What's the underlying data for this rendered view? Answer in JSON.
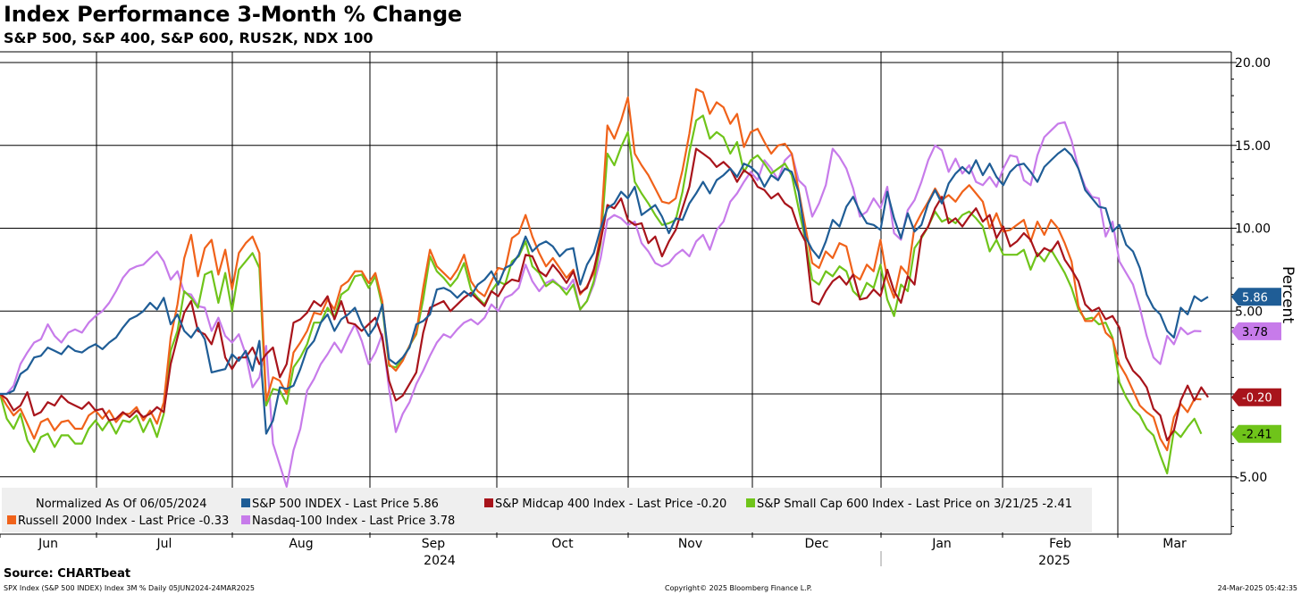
{
  "header": {
    "title": "Index Performance 3-Month % Change",
    "subtitle": "S&P 500, S&P 400, S&P 600, RUS2K, NDX 100"
  },
  "footer": {
    "source": "Source: CHARTbeat",
    "left_note": "SPX Index (S&P 500 INDEX) Index 3M %  Daily 05JUN2024-24MAR2025",
    "center_note": "Copyright© 2025 Bloomberg Finance L.P.",
    "right_note": "24-Mar-2025 05:42:35"
  },
  "colors": {
    "sp500": "#1f5d96",
    "midcap": "#a8141b",
    "smallcap": "#6fc41a",
    "russell": "#f0621a",
    "nasdaq": "#c77bea",
    "grid": "#000000"
  },
  "chart_data": {
    "type": "line",
    "ylabel": "Percent",
    "ylim": [
      -8.5,
      21
    ],
    "yticks": [
      -5,
      0,
      5,
      10,
      15,
      20
    ],
    "ytick_labels": [
      "-5.00",
      "",
      "5.00",
      "10.00",
      "15.00",
      "20.00"
    ],
    "month_labels": [
      "Jun",
      "Jul",
      "Aug",
      "Sep",
      "Oct",
      "Nov",
      "Dec",
      "Jan",
      "Feb",
      "Mar"
    ],
    "year_labels": [
      "2024",
      "2025"
    ],
    "legend_header": "Normalized As Of 06/05/2024",
    "legend_entries": [
      "S&P 500 INDEX - Last Price      5.86",
      "S&P Midcap 400 Index - Last Price -0.20",
      "S&P Small Cap 600 Index - Last Price on 3/21/25 -2.41",
      "Russell 2000 Index - Last Price -0.33",
      "Nasdaq-100 Index - Last Price 3.78"
    ],
    "series": [
      {
        "name": "S&P 500 INDEX",
        "last_label": "5.86",
        "values": [
          0,
          0,
          0.2,
          1.2,
          1.5,
          2.2,
          2.3,
          2.8,
          2.6,
          2.4,
          2.9,
          2.6,
          2.5,
          2.8,
          3,
          2.7,
          3.1,
          3.4,
          4,
          4.5,
          4.7,
          5,
          5.5,
          5.1,
          5.8,
          4.2,
          4.8,
          3.8,
          3.4,
          4,
          3.3,
          1.3,
          1.4,
          1.5,
          2.4,
          2,
          2.6,
          1.4,
          3.2,
          -2.4,
          -1.6,
          0.4,
          0.3,
          0.5,
          1.5,
          2.7,
          3.2,
          4.3,
          4.8,
          3.8,
          4.5,
          4.8,
          5.2,
          4.2,
          3.5,
          4.1,
          5.4,
          2.1,
          1.8,
          2.2,
          2.8,
          4.2,
          4.4,
          4.8,
          6.3,
          6.4,
          6.2,
          5.8,
          6.2,
          5.9,
          6.6,
          6.9,
          7.4,
          6.6,
          7.6,
          7.8,
          8.4,
          9.5,
          8.6,
          9,
          9.2,
          8.9,
          8.3,
          8.7,
          8.8,
          6.6,
          7.8,
          8.5,
          10,
          11.2,
          11.5,
          12.2,
          11.8,
          12.5,
          10.8,
          11.1,
          11.4,
          10.7,
          9.7,
          10.6,
          10.5,
          11.5,
          12.1,
          12.8,
          12.1,
          12.9,
          13.2,
          13.6,
          13.1,
          13.9,
          13.7,
          13.3,
          12.5,
          13.2,
          12.9,
          13.6,
          13.4,
          12.2,
          9.5,
          8.7,
          8.2,
          9.2,
          10.5,
          10.1,
          11.3,
          11.9,
          11,
          10.3,
          10.2,
          9.9,
          12.2,
          10.6,
          9.4,
          10.9,
          9.8,
          10.2,
          11.5,
          12.3,
          11.5,
          12.7,
          13.3,
          13.7,
          13.3,
          14.1,
          13.2,
          13.9,
          13.1,
          12.6,
          13.4,
          13.8,
          13.9,
          13.4,
          12.8,
          13.7,
          14.1,
          14.5,
          14.8,
          14.4,
          13.6,
          12.3,
          11.8,
          11.3,
          11.2,
          9.8,
          10.2,
          9,
          8.6,
          7.6,
          6,
          5.2,
          4.8,
          3.8,
          3.4,
          5.2,
          4.8,
          5.9,
          5.6,
          5.86
        ]
      },
      {
        "name": "S&P Midcap 400 Index",
        "last_label": "-0.20",
        "values": [
          0,
          -0.3,
          -1,
          -0.7,
          0.1,
          -1.3,
          -1.1,
          -0.5,
          -0.7,
          -0.1,
          -0.5,
          -0.7,
          -0.9,
          -0.5,
          -1,
          -0.9,
          -1.6,
          -1.5,
          -1.1,
          -1.4,
          -1,
          -1.4,
          -1.2,
          -0.8,
          -1.1,
          1.8,
          3.4,
          4.9,
          5.6,
          3.8,
          3.6,
          3,
          4.3,
          2.2,
          1.5,
          2.2,
          2.2,
          2.8,
          1.8,
          2.4,
          2.8,
          1,
          1.8,
          4.3,
          4.5,
          4.9,
          5.6,
          5.3,
          5.9,
          4.5,
          5.6,
          4.3,
          4.2,
          3.8,
          4.2,
          4.6,
          3.4,
          0.8,
          -0.4,
          -0.1,
          0.6,
          1.3,
          3.7,
          5.2,
          5.4,
          5.6,
          5,
          5.4,
          5.8,
          6.1,
          5.7,
          5.3,
          6.2,
          5.9,
          6.6,
          6.9,
          6.8,
          8.4,
          8.3,
          7.4,
          7.1,
          7.8,
          7.3,
          6.7,
          7.4,
          6.1,
          6.4,
          7.5,
          9.2,
          11.4,
          11.2,
          11.8,
          10.5,
          10.2,
          10.3,
          9.1,
          9.5,
          8.3,
          9.2,
          9.9,
          11.2,
          12.5,
          14.8,
          14.5,
          14.2,
          13.7,
          14,
          13.6,
          12.8,
          13.5,
          13.2,
          12.5,
          12.3,
          11.8,
          12.1,
          11.5,
          11.2,
          10,
          9.2,
          5.6,
          5.4,
          6.2,
          6.8,
          7.1,
          6.6,
          7.2,
          5.7,
          5.8,
          6.3,
          5.9,
          7.5,
          6.2,
          5.5,
          7.1,
          6.6,
          9.5,
          10.1,
          11.2,
          11.9,
          10.3,
          10.6,
          10.1,
          10.7,
          11.2,
          10.4,
          10.8,
          9.4,
          10.1,
          8.9,
          9.2,
          9.7,
          9.3,
          8.3,
          8.8,
          8.6,
          9.2,
          8.1,
          7.5,
          6.8,
          5.4,
          5,
          5.2,
          4.5,
          4.7,
          4,
          2.2,
          1.4,
          1,
          0.4,
          -0.9,
          -1.3,
          -2.8,
          -2.2,
          -0.4,
          0.5,
          -0.4,
          0.4,
          -0.2
        ]
      },
      {
        "name": "S&P Small Cap 600 Index",
        "last_label": "-2.41",
        "values": [
          0,
          -1.5,
          -2.1,
          -1.2,
          -2.8,
          -3.5,
          -2.6,
          -2.4,
          -3.2,
          -2.5,
          -2.5,
          -3,
          -3,
          -2.1,
          -1.6,
          -2.2,
          -1.6,
          -2.4,
          -1.6,
          -1.7,
          -1.3,
          -2.3,
          -1.5,
          -2.6,
          -1.2,
          2.6,
          3.8,
          6.2,
          5.8,
          5.2,
          7.2,
          7.4,
          5.5,
          7.3,
          5,
          7.5,
          8,
          8.5,
          7.6,
          -0.7,
          0.3,
          0.2,
          -0.6,
          1.6,
          2.2,
          3,
          4.3,
          4.3,
          5.2,
          4.6,
          6,
          6.3,
          7.1,
          7.2,
          6.4,
          7.1,
          5.3,
          1.7,
          1.6,
          2.1,
          2.9,
          3.6,
          5.7,
          8.3,
          7.4,
          7,
          6.5,
          7,
          7.9,
          6.3,
          5.8,
          5.4,
          6.2,
          6.8,
          6.6,
          8,
          8.3,
          9.2,
          7.7,
          7.3,
          6.5,
          6.8,
          6.5,
          6,
          6.6,
          5.1,
          5.6,
          6.8,
          9.1,
          14.5,
          13.8,
          14.9,
          15.8,
          12.8,
          12.1,
          11.5,
          10.8,
          10.2,
          10.3,
          10.5,
          12.2,
          14.6,
          16.5,
          16.8,
          15.4,
          15.8,
          15.5,
          14.5,
          15.2,
          13.4,
          14.1,
          14.4,
          13.9,
          13.3,
          13.6,
          13.9,
          13.2,
          11.2,
          9.3,
          6.9,
          6.6,
          7.4,
          7.1,
          7.7,
          7.4,
          6.2,
          5.8,
          6.7,
          6.4,
          7.8,
          5.7,
          4.7,
          6.6,
          6.2,
          8.8,
          9.4,
          10.1,
          11,
          10.4,
          10.6,
          10.3,
          10.8,
          11,
          10.6,
          10.1,
          8.6,
          9.3,
          8.4,
          8.4,
          8.4,
          8.7,
          7.5,
          8.5,
          8,
          8.7,
          8,
          7.3,
          6.4,
          5.1,
          4.5,
          4.6,
          4.2,
          4.3,
          3.4,
          0.7,
          -0.2,
          -0.9,
          -1.3,
          -2.1,
          -2.5,
          -3.7,
          -4.8,
          -2.2,
          -2.6,
          -2,
          -1.5,
          -2.41
        ]
      },
      {
        "name": "Russell 2000 Index",
        "last_label": "-0.33",
        "values": [
          0,
          -0.7,
          -1.3,
          -0.9,
          -1.8,
          -2.7,
          -1.7,
          -1.5,
          -2.2,
          -1.7,
          -1.6,
          -2.1,
          -2.1,
          -1.3,
          -1,
          -1.5,
          -1,
          -1.7,
          -1.2,
          -1.2,
          -0.8,
          -1.6,
          -1,
          -1.8,
          -0.5,
          3.4,
          5.4,
          8.2,
          9.6,
          7.1,
          8.8,
          9.3,
          7.2,
          8.7,
          6.3,
          8.5,
          9.1,
          9.5,
          8.5,
          -0.4,
          1,
          0.8,
          0,
          2.5,
          3.1,
          3.8,
          4.9,
          4.8,
          5.7,
          5.1,
          6.5,
          6.8,
          7.4,
          7.4,
          6.7,
          7.3,
          5.6,
          1.8,
          1.4,
          2,
          2.9,
          3.7,
          6.4,
          8.7,
          7.7,
          7.3,
          6.9,
          7.5,
          8.4,
          6.8,
          6.2,
          5.9,
          6.8,
          7.6,
          7.5,
          9.4,
          9.7,
          10.8,
          9.5,
          8.5,
          7.7,
          8.2,
          7.6,
          7,
          7.5,
          6,
          6.5,
          7.3,
          9.7,
          16.2,
          15.4,
          16.5,
          17.9,
          14.5,
          13.8,
          13.2,
          12.4,
          11.6,
          11.5,
          11.8,
          13.5,
          15.7,
          18.4,
          18.2,
          16.9,
          17.6,
          17.3,
          16.3,
          16.9,
          14.9,
          15.8,
          16,
          15.2,
          14.5,
          15,
          15.1,
          14.5,
          12.3,
          10.1,
          7.9,
          7.6,
          8.6,
          8.2,
          9.1,
          8.9,
          7.2,
          6.9,
          7.8,
          7.4,
          9.3,
          6.9,
          5.8,
          7.7,
          7.2,
          10.1,
          10.9,
          11.6,
          12.4,
          11.7,
          12,
          11.6,
          12.2,
          12.6,
          12.1,
          11.6,
          10,
          10.9,
          9.8,
          9.9,
          10.2,
          10.5,
          9.2,
          10.4,
          9.6,
          10.5,
          10,
          9.1,
          8,
          5.3,
          4.4,
          4.4,
          4.9,
          3.7,
          3.3,
          1.8,
          1.1,
          0.2,
          -0.7,
          -1.1,
          -1.4,
          -2.7,
          -3.4,
          -1.4,
          -0.6,
          -1.1,
          -0.3,
          -0.33
        ]
      },
      {
        "name": "Nasdaq-100 Index",
        "last_label": "3.78",
        "values": [
          0,
          0,
          0.5,
          1.8,
          2.5,
          3.1,
          3.3,
          4.2,
          3.5,
          3.1,
          3.7,
          3.9,
          3.7,
          4.3,
          4.7,
          5,
          5.5,
          6.2,
          7,
          7.5,
          7.7,
          7.8,
          8.2,
          8.6,
          8,
          6.9,
          7.4,
          6.1,
          6,
          5.3,
          5.2,
          3.8,
          4.6,
          3.5,
          3.1,
          3.6,
          2.4,
          0.4,
          1,
          2.9,
          -3,
          -4.3,
          -5.6,
          -3.4,
          -2.1,
          0.2,
          0.9,
          1.8,
          2.4,
          3.1,
          2.5,
          3.4,
          4.2,
          3.2,
          1.8,
          2.5,
          3.6,
          0.3,
          -2.3,
          -1.2,
          -0.5,
          0.6,
          1.4,
          2.3,
          3.1,
          3.6,
          3.4,
          3.9,
          4.3,
          4.5,
          4.2,
          4.6,
          5.4,
          5,
          5.8,
          6,
          6.4,
          7.8,
          6.8,
          6.2,
          6.7,
          6.9,
          6.5,
          6.3,
          6.9,
          5.1,
          5.6,
          6.6,
          8.2,
          10.5,
          10.8,
          10.6,
          10.2,
          10.4,
          9.1,
          8.6,
          7.9,
          7.7,
          7.9,
          8.4,
          8.7,
          8.3,
          9.2,
          9.6,
          8.7,
          9.9,
          10.4,
          11.6,
          12.1,
          12.8,
          13.4,
          12.9,
          14.1,
          13.6,
          12.9,
          14.1,
          14.5,
          12.9,
          12.5,
          10.7,
          11.5,
          12.6,
          14.8,
          14.3,
          13.6,
          12.4,
          10.7,
          11,
          11.8,
          11.2,
          12.5,
          9.7,
          9.3,
          11.1,
          11.7,
          12.8,
          14.1,
          15,
          14.7,
          13.4,
          14.2,
          13.3,
          13.8,
          12.8,
          12.6,
          13.1,
          12.5,
          13.6,
          14.4,
          14.3,
          12.9,
          12.6,
          14.4,
          15.5,
          15.9,
          16.3,
          16.4,
          15.3,
          13.6,
          12.5,
          11.9,
          11.8,
          9.5,
          10.4,
          8,
          7.3,
          6.6,
          5.2,
          3.5,
          2.2,
          1.8,
          3.5,
          3,
          4,
          3.6,
          3.8,
          3.78
        ]
      }
    ]
  }
}
